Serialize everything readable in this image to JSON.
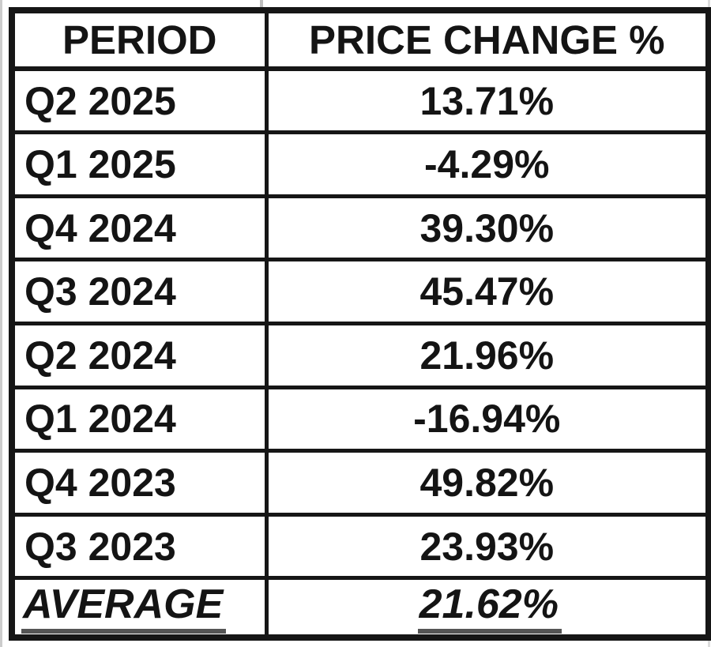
{
  "colors": {
    "table_border": "#161616",
    "text": "#141414",
    "underline": "#555555",
    "gridline": "#cccccc",
    "background": "#ffffff"
  },
  "table": {
    "header": {
      "period": "PERIOD",
      "change": "PRICE CHANGE %"
    },
    "rows": [
      {
        "period": "Q2 2025",
        "change": "13.71%"
      },
      {
        "period": "Q1 2025",
        "change": "-4.29%"
      },
      {
        "period": "Q4 2024",
        "change": "39.30%"
      },
      {
        "period": "Q3 2024",
        "change": "45.47%"
      },
      {
        "period": "Q2 2024",
        "change": "21.96%"
      },
      {
        "period": "Q1 2024",
        "change": "-16.94%"
      },
      {
        "period": "Q4 2023",
        "change": "49.82%"
      },
      {
        "period": "Q3 2023",
        "change": "23.93%"
      }
    ],
    "summary": {
      "label": "AVERAGE",
      "value": "21.62%"
    }
  },
  "chart_data": {
    "type": "table",
    "columns": [
      "PERIOD",
      "PRICE CHANGE %"
    ],
    "categories": [
      "Q2 2025",
      "Q1 2025",
      "Q4 2024",
      "Q3 2024",
      "Q2 2024",
      "Q1 2024",
      "Q4 2023",
      "Q3 2023"
    ],
    "values": [
      13.71,
      -4.29,
      39.3,
      45.47,
      21.96,
      -16.94,
      49.82,
      23.93
    ],
    "average": 21.62,
    "unit": "%",
    "summary_row_label": "AVERAGE"
  }
}
